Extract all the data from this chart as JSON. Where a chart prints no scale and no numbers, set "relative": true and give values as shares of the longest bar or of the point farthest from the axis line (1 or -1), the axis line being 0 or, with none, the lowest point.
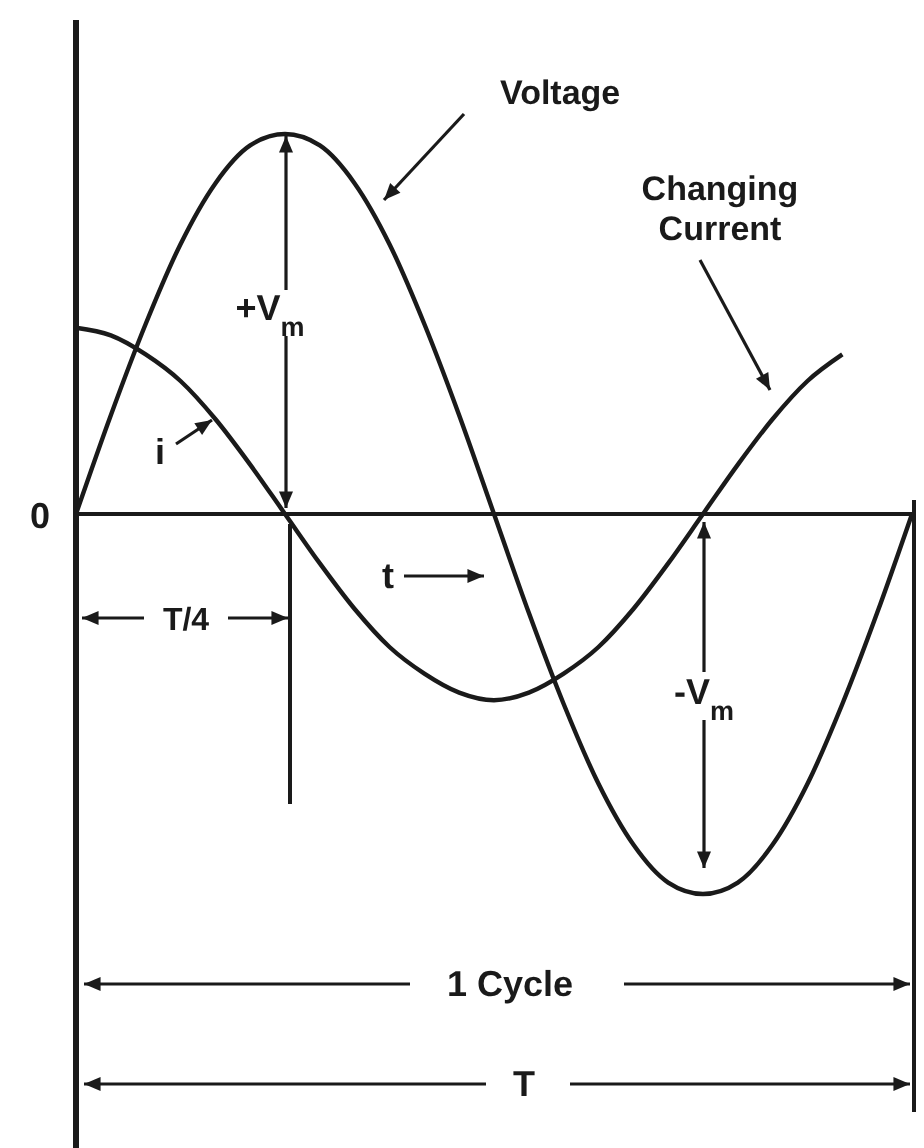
{
  "chart_data": {
    "type": "line",
    "relative": true,
    "categories": [
      null,
      null,
      null,
      null,
      null,
      null,
      null,
      null,
      null,
      null,
      null,
      null,
      null,
      null,
      null,
      null,
      null,
      null,
      null,
      null,
      null,
      null,
      null,
      null,
      null
    ],
    "series": [
      {
        "name": "Voltage",
        "color": "#1a1a1a",
        "values": [
          0,
          0.26,
          0.5,
          0.71,
          0.87,
          0.97,
          1,
          0.97,
          0.87,
          0.71,
          0.5,
          0.26,
          0,
          -0.26,
          -0.5,
          -0.71,
          -0.87,
          -0.97,
          -1,
          -0.97,
          -0.87,
          -0.71,
          -0.5,
          -0.26,
          0
        ]
      },
      {
        "name": "Changing Current",
        "color": "#1a1a1a",
        "values": [
          0.49,
          0.47,
          0.42,
          0.35,
          0.25,
          0.13,
          0,
          -0.13,
          -0.25,
          -0.35,
          -0.42,
          -0.47,
          -0.49,
          -0.47,
          -0.42,
          -0.35,
          -0.25,
          -0.13,
          0,
          0.13,
          0.25,
          0.35,
          0.42,
          null,
          null
        ]
      }
    ],
    "annotations": [
      "0",
      "+V$_{m}$",
      "-V$_{m}$",
      "i",
      "t",
      "T/4",
      "1 Cycle",
      "T"
    ],
    "legend": false,
    "marker": "none",
    "line_style": "solid"
  }
}
